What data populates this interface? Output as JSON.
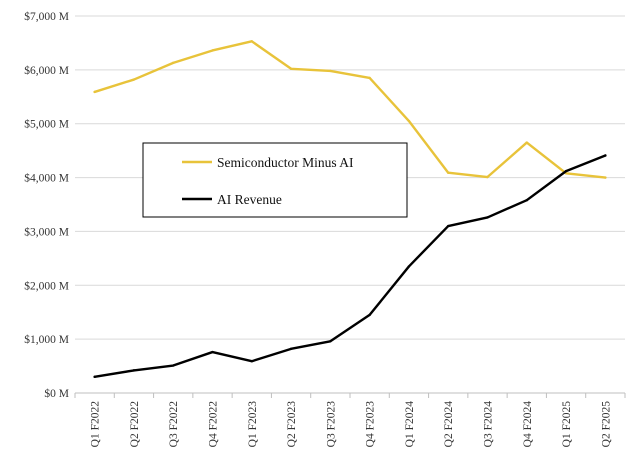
{
  "chart_data": {
    "type": "line",
    "categories": [
      "Q1 F2022",
      "Q2 F2022",
      "Q3 F2022",
      "Q4 F2022",
      "Q1 F2023",
      "Q2 F2023",
      "Q3 F2023",
      "Q4 F2023",
      "Q1 F2024",
      "Q2 F2024",
      "Q3 F2024",
      "Q4 F2024",
      "Q1 F2025",
      "Q2 F2025"
    ],
    "series": [
      {
        "name": "Semiconductor Minus AI",
        "color": "#E8C33A",
        "values": [
          5590,
          5820,
          6130,
          6360,
          6530,
          6020,
          5980,
          5850,
          5050,
          4090,
          4010,
          4650,
          4080,
          4000
        ]
      },
      {
        "name": "AI Revenue",
        "color": "#000000",
        "values": [
          300,
          420,
          510,
          760,
          590,
          820,
          960,
          1450,
          2350,
          3100,
          3260,
          3580,
          4120,
          4410
        ]
      }
    ],
    "yticks": [
      "$0 M",
      "$1,000 M",
      "$2,000 M",
      "$3,000 M",
      "$4,000 M",
      "$5,000 M",
      "$6,000 M",
      "$7,000 M"
    ],
    "ylim": [
      0,
      7000
    ],
    "grid": true,
    "legend": "center-left"
  }
}
